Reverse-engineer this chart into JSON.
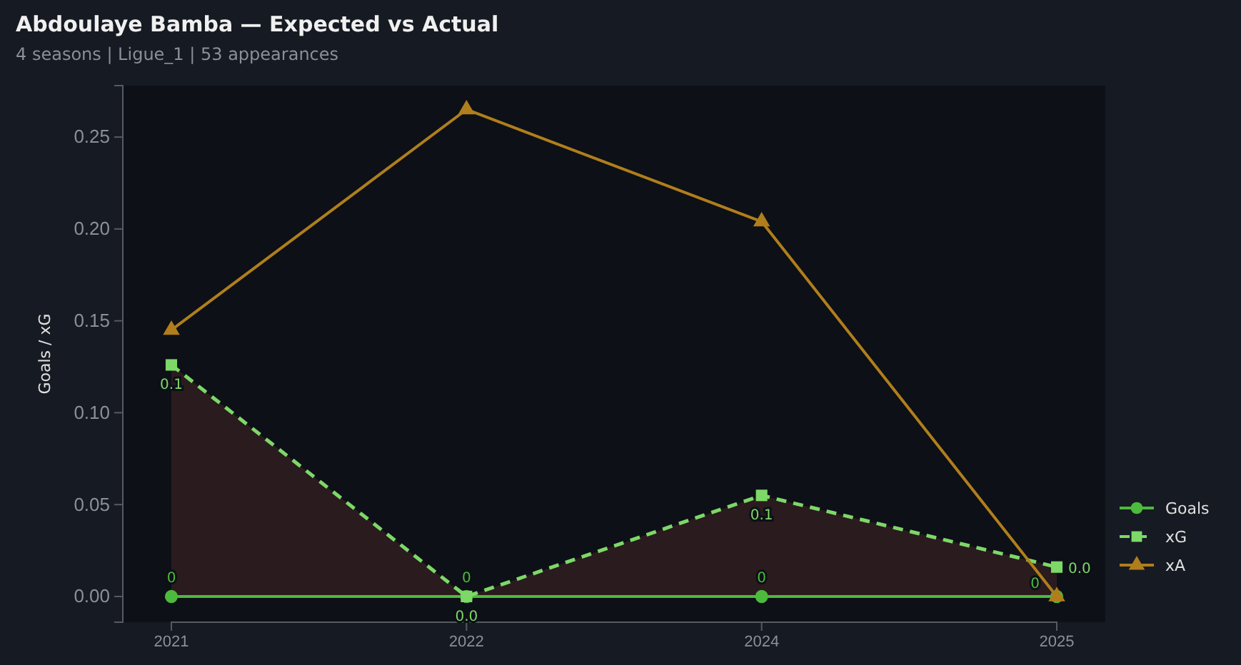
{
  "chart_data": {
    "type": "line",
    "title": "Abdoulaye Bamba — Expected vs Actual",
    "subtitle": "4 seasons | Ligue_1 | 53 appearances",
    "ylabel": "Goals / xG",
    "categories": [
      "2021",
      "2022",
      "2024",
      "2025"
    ],
    "series": [
      {
        "name": "Goals",
        "color": "#4cba3c",
        "marker": "circle",
        "line_style": "solid",
        "values": [
          0,
          0,
          0,
          0
        ],
        "value_labels": [
          "0",
          "0",
          "0",
          "0"
        ]
      },
      {
        "name": "xG",
        "type": "area",
        "color": "#7dd868",
        "marker": "square",
        "line_style": "dashed",
        "values": [
          0.126,
          0,
          0.055,
          0.016
        ],
        "value_labels": [
          "0.1",
          "0.0",
          "0.1",
          "0.0"
        ]
      },
      {
        "name": "xA",
        "color": "#b07e1c",
        "marker": "triangle",
        "line_style": "solid",
        "values": [
          0.145,
          0.265,
          0.204,
          0
        ]
      }
    ],
    "ylim": [
      -0.014,
      0.278
    ],
    "yticks": [
      {
        "value": 0,
        "label": "0.00"
      },
      {
        "value": 0.05,
        "label": "0.05"
      },
      {
        "value": 0.1,
        "label": "0.10"
      },
      {
        "value": 0.15,
        "label": "0.15"
      },
      {
        "value": 0.2,
        "label": "0.20"
      },
      {
        "value": 0.25,
        "label": "0.25"
      }
    ],
    "grid": false,
    "legend": "right"
  }
}
